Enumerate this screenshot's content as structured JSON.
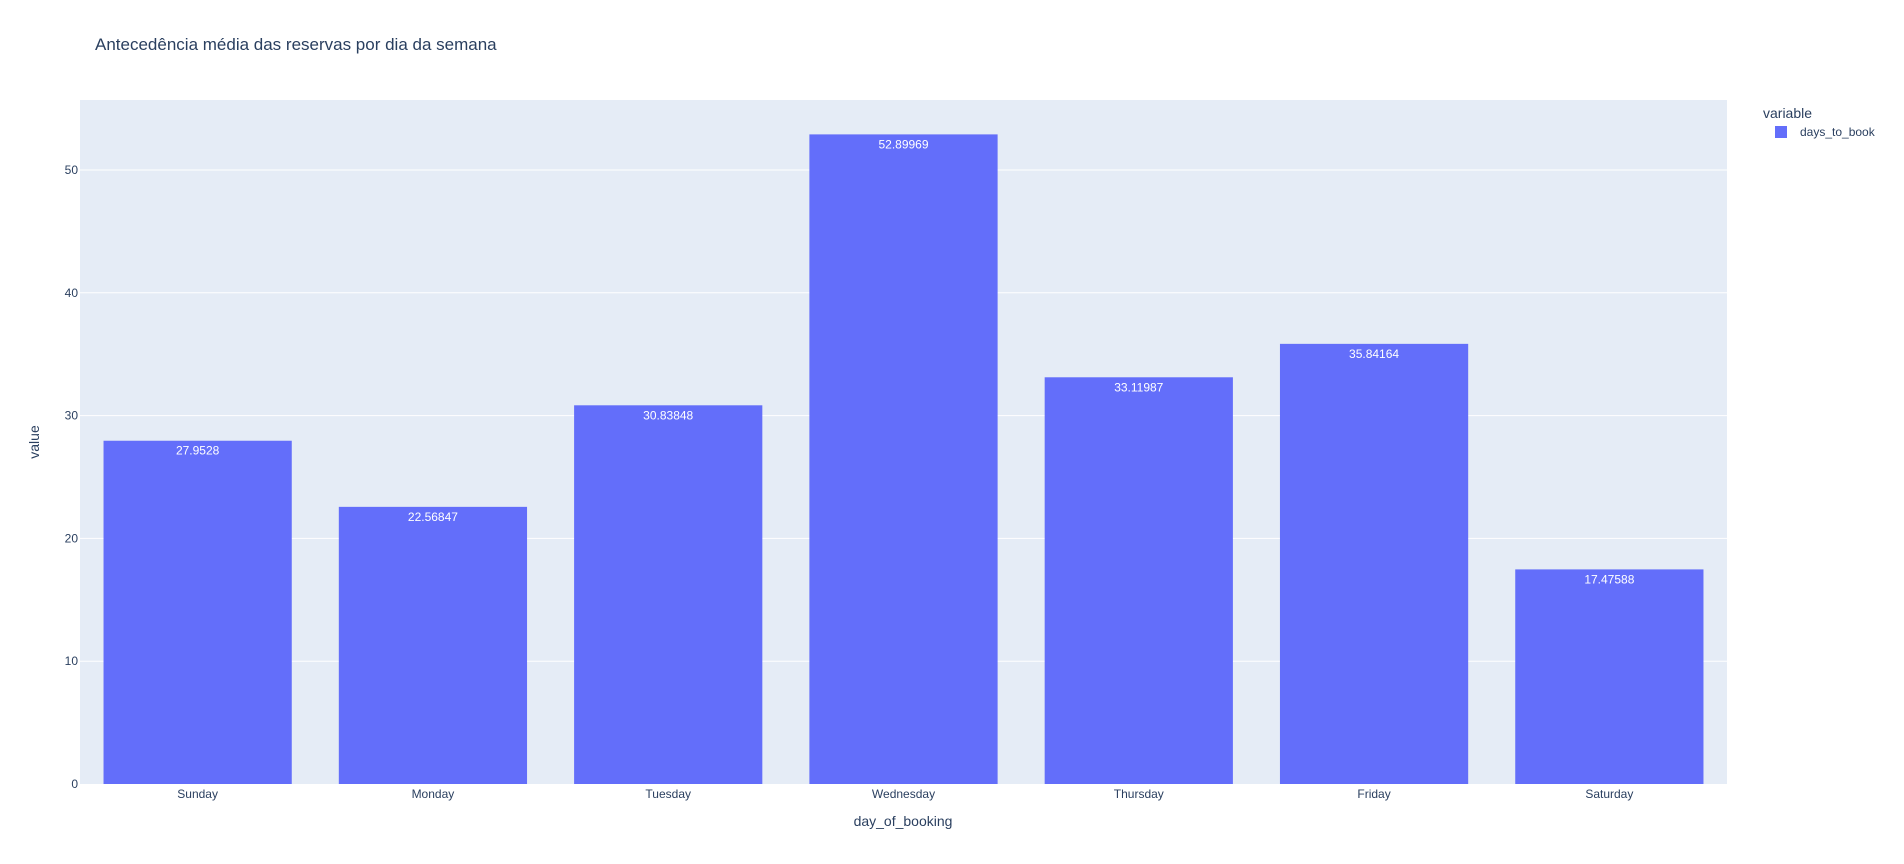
{
  "chart_data": {
    "type": "bar",
    "title": "Antecedência média das reservas por dia da semana",
    "xlabel": "day_of_booking",
    "ylabel": "value",
    "categories": [
      "Sunday",
      "Monday",
      "Tuesday",
      "Wednesday",
      "Thursday",
      "Friday",
      "Saturday"
    ],
    "series": [
      {
        "name": "days_to_book",
        "values": [
          27.9528,
          22.56847,
          30.83848,
          52.89969,
          33.11987,
          35.84164,
          17.47588
        ],
        "labels": [
          "27.9528",
          "22.56847",
          "30.83848",
          "52.89969",
          "33.11987",
          "35.84164",
          "17.47588"
        ]
      }
    ],
    "ylim": [
      0,
      55.7
    ],
    "yticks": [
      0,
      10,
      20,
      30,
      40,
      50
    ],
    "grid": true,
    "legend": {
      "title": "variable",
      "placement": "top-right"
    },
    "colors": {
      "bar": "#636efa",
      "plot_bg": "#e5ecf6",
      "grid": "#ffffff",
      "text": "#2a3f5f"
    }
  }
}
